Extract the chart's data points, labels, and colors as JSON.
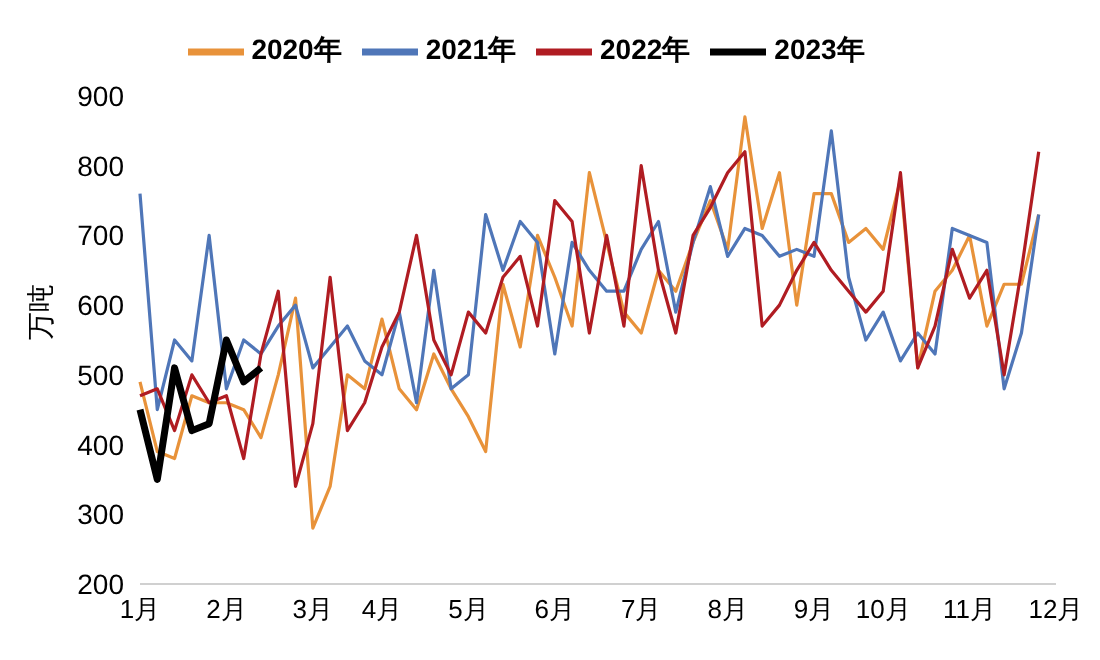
{
  "chart_data": {
    "type": "line",
    "ylabel": "万吨",
    "categories": [
      "1月",
      null,
      null,
      null,
      null,
      "2月",
      null,
      null,
      null,
      null,
      "3月",
      null,
      null,
      null,
      "4月",
      null,
      null,
      null,
      null,
      "5月",
      null,
      null,
      null,
      null,
      "6月",
      null,
      null,
      null,
      null,
      "7月",
      null,
      null,
      null,
      null,
      "8月",
      null,
      null,
      null,
      null,
      "9月",
      null,
      null,
      null,
      "10月",
      null,
      null,
      null,
      null,
      "11月",
      null,
      null,
      null,
      null,
      "12月"
    ],
    "series": [
      {
        "name": "2020年",
        "color": "#e8923a",
        "values": [
          490,
          390,
          380,
          470,
          460,
          460,
          450,
          410,
          500,
          610,
          280,
          340,
          500,
          480,
          580,
          480,
          450,
          530,
          480,
          440,
          390,
          630,
          540,
          700,
          640,
          570,
          790,
          690,
          590,
          560,
          650,
          620,
          690,
          750,
          680,
          870,
          710,
          790,
          600,
          760,
          760,
          690,
          710,
          680,
          780,
          510,
          620,
          650,
          700,
          570,
          630,
          630,
          730,
          null
        ]
      },
      {
        "name": "2021年",
        "color": "#4f76b8",
        "values": [
          760,
          450,
          550,
          520,
          700,
          480,
          550,
          530,
          570,
          600,
          510,
          540,
          570,
          520,
          500,
          590,
          460,
          650,
          480,
          500,
          730,
          650,
          720,
          690,
          530,
          690,
          650,
          620,
          620,
          680,
          720,
          590,
          690,
          770,
          670,
          710,
          700,
          670,
          680,
          670,
          850,
          640,
          550,
          590,
          520,
          560,
          530,
          710,
          700,
          690,
          480,
          560,
          730,
          null
        ]
      },
      {
        "name": "2022年",
        "color": "#b01c22",
        "values": [
          470,
          480,
          420,
          500,
          460,
          470,
          380,
          530,
          620,
          340,
          430,
          640,
          420,
          460,
          540,
          590,
          700,
          550,
          500,
          590,
          560,
          640,
          670,
          570,
          750,
          720,
          560,
          700,
          570,
          800,
          650,
          560,
          700,
          740,
          790,
          820,
          570,
          600,
          650,
          690,
          650,
          620,
          590,
          620,
          790,
          510,
          570,
          680,
          610,
          650,
          500,
          650,
          820,
          null
        ]
      },
      {
        "name": "2023年",
        "color": "#000000",
        "values": [
          450,
          350,
          510,
          420,
          430,
          550,
          490,
          510,
          null,
          null,
          null,
          null,
          null,
          null,
          null,
          null,
          null,
          null,
          null,
          null,
          null,
          null,
          null,
          null,
          null,
          null,
          null,
          null,
          null,
          null,
          null,
          null,
          null,
          null,
          null,
          null,
          null,
          null,
          null,
          null,
          null,
          null,
          null,
          null,
          null,
          null,
          null,
          null,
          null,
          null,
          null,
          null,
          null,
          null
        ]
      }
    ],
    "ylim": [
      200,
      900
    ],
    "yticks": [
      200,
      300,
      400,
      500,
      600,
      700,
      800,
      900
    ],
    "grid": false,
    "legend": "top",
    "marker": "none",
    "line_style": "solid"
  }
}
